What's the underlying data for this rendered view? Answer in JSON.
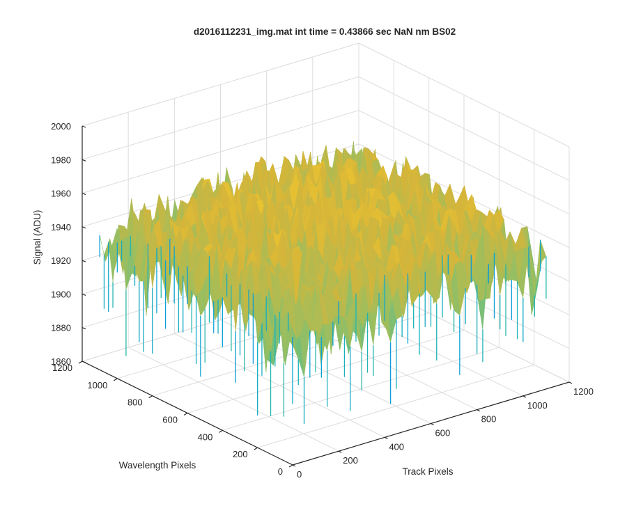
{
  "chart_data": {
    "type": "surface",
    "title": "d2016112231_img.mat int time = 0.43866 sec  NaN nm BS02",
    "xlabel": "Track Pixels",
    "ylabel": "Wavelength Pixels",
    "zlabel": "Signal (ADU)",
    "xlim": [
      0,
      1200
    ],
    "ylim": [
      0,
      1200
    ],
    "zlim": [
      1860,
      2000
    ],
    "xticks": [
      0,
      200,
      400,
      600,
      800,
      1000,
      1200
    ],
    "yticks": [
      0,
      200,
      400,
      600,
      800,
      1000,
      1200
    ],
    "zticks": [
      1860,
      1880,
      1900,
      1920,
      1940,
      1960,
      1980,
      2000
    ],
    "x_data_range": [
      0,
      1100
    ],
    "y_data_range": [
      0,
      1100
    ],
    "signal_range": [
      1865,
      1985
    ],
    "signal_mean": 1935,
    "grid": "on",
    "colormap": "parula",
    "colormap_colors": [
      "#0a74e6",
      "#0aa1d6",
      "#22b5b0",
      "#5cbf8a",
      "#9dbe5e",
      "#d5b53a",
      "#f3c92c",
      "#f9e02a"
    ]
  }
}
